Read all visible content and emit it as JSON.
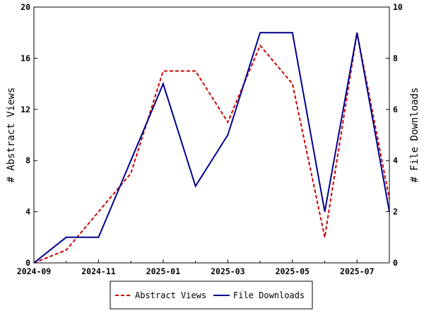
{
  "chart_data": {
    "type": "line",
    "x": [
      "2024-09",
      "2024-10",
      "2024-11",
      "2024-12",
      "2025-01",
      "2025-02",
      "2025-03",
      "2025-04",
      "2025-05",
      "2025-06",
      "2025-07",
      "2025-08"
    ],
    "x_tick_labels": [
      "2024-09",
      "2024-11",
      "2025-01",
      "2025-03",
      "2025-05",
      "2025-07"
    ],
    "series": [
      {
        "name": "Abstract Views",
        "axis": "left",
        "color": "#cc0000",
        "dash": "dashed",
        "values": [
          0,
          1,
          4,
          7,
          15,
          15,
          11,
          17,
          14,
          2,
          18,
          5
        ]
      },
      {
        "name": "File Downloads",
        "axis": "right",
        "color": "#00008b",
        "dash": "solid",
        "values": [
          0,
          1,
          1,
          4,
          7,
          3,
          5,
          9,
          9,
          2,
          9,
          2
        ]
      }
    ],
    "ylabel": "# Abstract Views",
    "y2label": "# File Downloads",
    "ylim": [
      0,
      20
    ],
    "y_ticks": [
      "0",
      "4",
      "8",
      "12",
      "16",
      "20"
    ],
    "y2lim": [
      0,
      10
    ],
    "y2_ticks": [
      "0",
      "2",
      "4",
      "6",
      "8",
      "10"
    ],
    "grid": false,
    "legend_position": "bottom-center"
  }
}
